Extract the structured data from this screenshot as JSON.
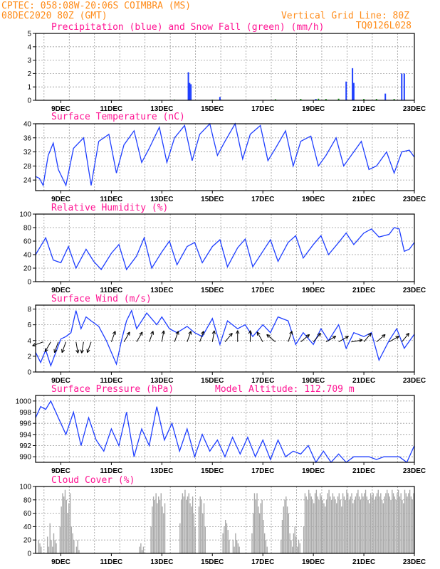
{
  "header": {
    "line1": "CPTEC:  058:08W-20:06S  COIMBRA (MS)",
    "line2": "08DEC2020 80Z (GMT)",
    "grid_note": "Vertical Grid Line: 80Z",
    "code": "TQ0126L028"
  },
  "colors": {
    "header": "#ff8c1a",
    "title": "#ff1493",
    "line": "#1f3fff",
    "snow": "#1aa01a",
    "cloud": "#a9a9a9",
    "arrow": "#000000"
  },
  "x_tick_labels": [
    "9DEC",
    "11DEC",
    "13DEC",
    "15DEC",
    "17DEC",
    "19DEC",
    "21DEC",
    "23DEC"
  ],
  "chart_data": [
    {
      "id": "precip",
      "type": "bar",
      "title": "Precipitation (blue) and Snow Fall (green) (mm/h)",
      "x_unit": "days since 08DEC2020 00Z",
      "ylim": [
        0,
        5
      ],
      "yticks": [
        0,
        1,
        2,
        3,
        4,
        5
      ],
      "series": [
        {
          "name": "Precipitation",
          "color": "#1f3fff",
          "points": [
            [
              6.05,
              2.1
            ],
            [
              6.1,
              1.3
            ],
            [
              6.15,
              1.2
            ],
            [
              7.3,
              0.25
            ],
            [
              11.1,
              0.1
            ],
            [
              12.3,
              1.4
            ],
            [
              12.55,
              2.4
            ],
            [
              12.6,
              1.3
            ],
            [
              13.85,
              0.5
            ],
            [
              14.5,
              2.0
            ],
            [
              14.6,
              2.0
            ]
          ]
        },
        {
          "name": "Snow Fall",
          "color": "#1aa01a",
          "points": [
            [
              4.5,
              0.05
            ],
            [
              5.5,
              0.05
            ],
            [
              7.0,
              0.05
            ],
            [
              9.5,
              0.08
            ],
            [
              10.5,
              0.1
            ],
            [
              11.2,
              0.12
            ],
            [
              11.5,
              0.1
            ],
            [
              12.0,
              0.12
            ],
            [
              13.0,
              0.1
            ],
            [
              13.5,
              0.1
            ],
            [
              14.2,
              0.1
            ]
          ]
        }
      ]
    },
    {
      "id": "temp",
      "type": "line",
      "title": "Surface Temperature (nC)",
      "x_unit": "days since 08DEC2020 00Z",
      "ylim": [
        21,
        40
      ],
      "yticks": [
        24,
        28,
        32,
        36,
        40
      ],
      "x": [
        0,
        0.15,
        0.3,
        0.5,
        0.7,
        0.9,
        1.2,
        1.5,
        1.9,
        2.2,
        2.5,
        2.9,
        3.2,
        3.5,
        3.9,
        4.2,
        4.5,
        4.9,
        5.2,
        5.5,
        5.9,
        6.2,
        6.5,
        6.9,
        7.2,
        7.5,
        7.9,
        8.2,
        8.5,
        8.9,
        9.2,
        9.5,
        9.9,
        10.2,
        10.5,
        10.9,
        11.2,
        11.5,
        11.9,
        12.2,
        12.5,
        12.9,
        13.2,
        13.5,
        13.9,
        14.2,
        14.5,
        14.8,
        15.0
      ],
      "values": [
        25,
        24.5,
        22.5,
        31,
        34.5,
        27,
        22.5,
        33,
        36,
        22.5,
        35,
        37,
        26,
        34,
        38,
        29,
        33,
        39,
        29,
        36,
        39.5,
        29.5,
        37,
        40,
        31,
        35,
        40,
        30,
        37,
        39.5,
        29.5,
        33,
        38,
        28,
        35,
        36.5,
        28,
        31,
        36,
        28,
        31,
        35,
        27,
        28,
        32,
        26,
        32,
        32.5,
        30.5
      ],
      "series_name": "Surface Temperature"
    },
    {
      "id": "rh",
      "type": "line",
      "title": "Relative Humidity (%)",
      "x_unit": "days since 08DEC2020 00Z",
      "ylim": [
        0,
        100
      ],
      "yticks": [
        0,
        20,
        40,
        60,
        80,
        100
      ],
      "x": [
        0,
        0.4,
        0.7,
        1.0,
        1.3,
        1.6,
        2.0,
        2.3,
        2.6,
        3.0,
        3.3,
        3.6,
        4.0,
        4.3,
        4.6,
        5.0,
        5.3,
        5.6,
        6.0,
        6.3,
        6.6,
        7.0,
        7.3,
        7.6,
        8.0,
        8.3,
        8.6,
        9.0,
        9.3,
        9.6,
        10.0,
        10.3,
        10.6,
        11.0,
        11.3,
        11.6,
        12.0,
        12.3,
        12.6,
        13.0,
        13.3,
        13.6,
        14.0,
        14.2,
        14.4,
        14.6,
        14.8,
        15.0
      ],
      "values": [
        40,
        65,
        32,
        28,
        52,
        20,
        48,
        30,
        18,
        42,
        55,
        18,
        38,
        65,
        20,
        44,
        60,
        25,
        52,
        58,
        28,
        52,
        62,
        22,
        50,
        63,
        22,
        45,
        62,
        30,
        58,
        68,
        35,
        55,
        68,
        40,
        58,
        72,
        55,
        72,
        78,
        66,
        70,
        80,
        78,
        45,
        48,
        58
      ],
      "series_name": "Relative Humidity"
    },
    {
      "id": "wind",
      "type": "line",
      "title": "Surface Wind (m/s)",
      "x_unit": "days since 08DEC2020 00Z",
      "ylim": [
        0,
        8.5
      ],
      "yticks": [
        0,
        2,
        4,
        6,
        8
      ],
      "x": [
        0,
        0.2,
        0.4,
        0.6,
        0.8,
        1.0,
        1.2,
        1.4,
        1.6,
        1.8,
        2.0,
        2.2,
        2.5,
        2.8,
        3.0,
        3.2,
        3.4,
        3.6,
        3.8,
        4.0,
        4.4,
        4.8,
        5.0,
        5.3,
        5.6,
        6.0,
        6.3,
        6.6,
        7.0,
        7.3,
        7.6,
        8.0,
        8.3,
        8.6,
        9.0,
        9.3,
        9.6,
        10.0,
        10.3,
        10.6,
        11.0,
        11.3,
        11.6,
        12.0,
        12.3,
        12.6,
        13.0,
        13.3,
        13.6,
        14.0,
        14.3,
        14.6,
        15.0
      ],
      "values": [
        2.5,
        1.2,
        2.8,
        0.8,
        2.5,
        4.2,
        4.5,
        5.0,
        7.8,
        5.5,
        7.0,
        6.5,
        5.8,
        4.0,
        2.5,
        1.0,
        4.0,
        6.5,
        7.8,
        5.5,
        7.5,
        6.0,
        7.0,
        5.5,
        5.0,
        5.8,
        5.0,
        4.5,
        6.8,
        3.5,
        6.5,
        5.5,
        6.0,
        4.5,
        6.0,
        5.0,
        7.0,
        6.5,
        3.5,
        5.0,
        3.5,
        5.5,
        4.0,
        6.0,
        3.0,
        5.0,
        4.5,
        5.0,
        1.5,
        4.0,
        5.5,
        3.0,
        4.8
      ],
      "series_name": "Wind Speed",
      "wind_arrows": [
        {
          "x": 0.3,
          "dir": 250
        },
        {
          "x": 0.6,
          "dir": 210
        },
        {
          "x": 0.9,
          "dir": 200
        },
        {
          "x": 1.2,
          "dir": 200
        },
        {
          "x": 1.6,
          "dir": 170
        },
        {
          "x": 1.9,
          "dir": 190
        },
        {
          "x": 2.2,
          "dir": 200
        },
        {
          "x": 3.0,
          "dir": 20
        },
        {
          "x": 3.5,
          "dir": 30
        },
        {
          "x": 4.0,
          "dir": 30
        },
        {
          "x": 4.5,
          "dir": 20
        },
        {
          "x": 5.0,
          "dir": 10
        },
        {
          "x": 5.5,
          "dir": 20
        },
        {
          "x": 6.0,
          "dir": 20
        },
        {
          "x": 6.5,
          "dir": 20
        },
        {
          "x": 7.0,
          "dir": 10
        },
        {
          "x": 7.5,
          "dir": 40
        },
        {
          "x": 8.0,
          "dir": 0
        },
        {
          "x": 8.5,
          "dir": 0
        },
        {
          "x": 9.0,
          "dir": 330
        },
        {
          "x": 9.5,
          "dir": 310
        },
        {
          "x": 10.0,
          "dir": 20
        },
        {
          "x": 10.5,
          "dir": 50
        },
        {
          "x": 11.0,
          "dir": 40
        },
        {
          "x": 11.5,
          "dir": 60
        },
        {
          "x": 12.0,
          "dir": 60
        },
        {
          "x": 12.5,
          "dir": 80
        },
        {
          "x": 13.0,
          "dir": 40
        },
        {
          "x": 13.5,
          "dir": 50
        },
        {
          "x": 14.0,
          "dir": 60
        },
        {
          "x": 14.5,
          "dir": 40
        }
      ]
    },
    {
      "id": "pres",
      "type": "line",
      "title": "Surface Pressure (hPa)",
      "extra_label": "Model Altitude: 112.709 m",
      "x_unit": "days since 08DEC2020 00Z",
      "ylim": [
        989,
        1001
      ],
      "yticks": [
        990,
        992,
        994,
        996,
        998,
        1000
      ],
      "x": [
        0,
        0.2,
        0.4,
        0.6,
        0.9,
        1.2,
        1.5,
        1.8,
        2.1,
        2.4,
        2.7,
        3.0,
        3.3,
        3.6,
        3.9,
        4.2,
        4.5,
        4.8,
        5.1,
        5.4,
        5.7,
        6.0,
        6.3,
        6.6,
        6.9,
        7.2,
        7.5,
        7.8,
        8.1,
        8.4,
        8.7,
        9.0,
        9.3,
        9.6,
        9.9,
        10.2,
        10.5,
        10.8,
        11.1,
        11.4,
        11.7,
        12.0,
        12.3,
        12.6,
        12.9,
        13.2,
        13.5,
        13.8,
        14.1,
        14.4,
        14.7,
        15.0
      ],
      "values": [
        997,
        999,
        998.5,
        1000,
        997,
        994,
        998,
        992,
        997,
        993,
        991,
        995,
        992,
        998,
        990,
        995,
        992,
        999,
        993,
        996,
        991,
        995,
        990,
        994,
        991,
        993,
        990,
        993.5,
        990.5,
        993.5,
        990,
        993,
        989.5,
        993,
        990,
        991,
        990.5,
        992,
        989,
        991,
        989,
        990.5,
        989,
        990,
        990,
        990,
        989.5,
        990,
        990,
        990,
        989,
        992
      ],
      "series_name": "Surface Pressure"
    },
    {
      "id": "cloud",
      "type": "bar",
      "title": "Cloud Cover (%)",
      "x_unit": "days since 08DEC2020 00Z",
      "ylim": [
        0,
        100
      ],
      "yticks": [
        0,
        20,
        40,
        60,
        80,
        100
      ],
      "series_name": "Cloud Cover",
      "color": "#a9a9a9",
      "segments": [
        {
          "x0": 0.1,
          "x1": 0.25,
          "vals": [
            20,
            15,
            10
          ]
        },
        {
          "x0": 0.45,
          "x1": 0.85,
          "vals": [
            25,
            10,
            45,
            20,
            10,
            30,
            20,
            15
          ]
        },
        {
          "x0": 0.95,
          "x1": 1.55,
          "vals": [
            40,
            70,
            90,
            85,
            95,
            80,
            60,
            75,
            90,
            40,
            30,
            20
          ]
        },
        {
          "x0": 1.6,
          "x1": 1.75,
          "vals": [
            10,
            20,
            5
          ]
        },
        {
          "x0": 4.1,
          "x1": 4.3,
          "vals": [
            10,
            15,
            5,
            10
          ]
        },
        {
          "x0": 4.55,
          "x1": 5.15,
          "vals": [
            40,
            70,
            85,
            80,
            90,
            75,
            85,
            80,
            90,
            70,
            60,
            75
          ]
        },
        {
          "x0": 5.7,
          "x1": 6.35,
          "vals": [
            45,
            80,
            90,
            85,
            95,
            80,
            85,
            90,
            75,
            70,
            85,
            60,
            40
          ]
        },
        {
          "x0": 6.45,
          "x1": 6.75,
          "vals": [
            70,
            85,
            80,
            60,
            75,
            40
          ]
        },
        {
          "x0": 7.4,
          "x1": 7.7,
          "vals": [
            30,
            40,
            50,
            45,
            35,
            20
          ]
        },
        {
          "x0": 7.8,
          "x1": 8.1,
          "vals": [
            20,
            10,
            30,
            20,
            15,
            10
          ]
        },
        {
          "x0": 8.55,
          "x1": 9.2,
          "vals": [
            30,
            60,
            90,
            80,
            90,
            70,
            60,
            75,
            80,
            50,
            30,
            20,
            10
          ]
        },
        {
          "x0": 9.7,
          "x1": 10.5,
          "vals": [
            20,
            50,
            70,
            80,
            85,
            70,
            60,
            30,
            20,
            10,
            30,
            40,
            25,
            10,
            20,
            15
          ]
        },
        {
          "x0": 10.6,
          "x1": 15.0,
          "vals": [
            40,
            90,
            85,
            80,
            95,
            90,
            85,
            80,
            75,
            90,
            95,
            85,
            80,
            90,
            85,
            80,
            75,
            70,
            80,
            90,
            95,
            85,
            80,
            90,
            85,
            80,
            75,
            85,
            90,
            80,
            70,
            90,
            85,
            80,
            95,
            90,
            80,
            85,
            90,
            75,
            80,
            85,
            90,
            95,
            85,
            80,
            90,
            85,
            90,
            95,
            85,
            80,
            75,
            90,
            85,
            90,
            80,
            85,
            90,
            95,
            85,
            90,
            80,
            75,
            85,
            90,
            95,
            90,
            85,
            80,
            95,
            90,
            85,
            80,
            90,
            95,
            85,
            90,
            80,
            75,
            95,
            90,
            85,
            90,
            95,
            85,
            80,
            90
          ]
        }
      ]
    }
  ]
}
